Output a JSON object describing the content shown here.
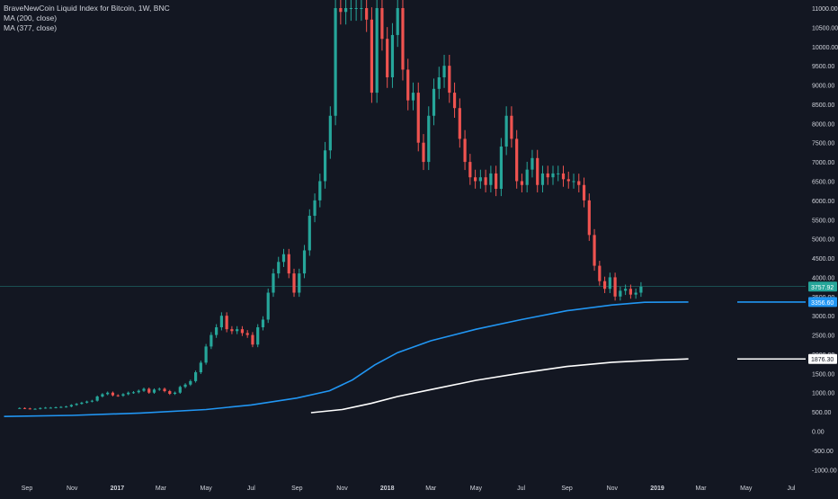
{
  "legend": {
    "title": "BraveNewCoin Liquid Index for Bitcoin, 1W, BNC",
    "ma1": "MA (200, close)",
    "ma2": "MA (377, close)"
  },
  "colors": {
    "background": "#131722",
    "up": "#26a69a",
    "down": "#ef5350",
    "ma200": "#2196f3",
    "ma377": "#ffffff",
    "axis_text": "#d1d4dc",
    "price_line": "#26a69a"
  },
  "chart_data": {
    "type": "candlestick",
    "title": "BraveNewCoin Liquid Index for Bitcoin, 1W, BNC",
    "timeframe": "1W",
    "y_axis": {
      "position": "right",
      "range": [
        -1100,
        11150
      ],
      "ticks": [
        11000,
        10500,
        10000,
        9500,
        9000,
        8500,
        8000,
        7500,
        7000,
        6500,
        6000,
        5500,
        5000,
        4500,
        4000,
        3500,
        3000,
        2500,
        2000,
        1500,
        1000,
        500,
        0,
        -500,
        -1000
      ],
      "tick_labels": [
        "11000.00",
        "10500.00",
        "10000.00",
        "9500.00",
        "9000.00",
        "8500.00",
        "8000.00",
        "7500.00",
        "7000.00",
        "6500.00",
        "6000.00",
        "5500.00",
        "5000.00",
        "4500.00",
        "4000.00",
        "3500.00",
        "3000.00",
        "2500.00",
        "2000.00",
        "1500.00",
        "1000.00",
        "500.00",
        "0.00",
        "-500.00",
        "-1000.00"
      ]
    },
    "x_axis": {
      "ticks": [
        {
          "label": "Sep",
          "date": "2016-09-01",
          "bold": false
        },
        {
          "label": "Nov",
          "date": "2016-11-01",
          "bold": false
        },
        {
          "label": "2017",
          "date": "2017-01-01",
          "bold": true
        },
        {
          "label": "Mar",
          "date": "2017-03-01",
          "bold": false
        },
        {
          "label": "May",
          "date": "2017-05-01",
          "bold": false
        },
        {
          "label": "Jul",
          "date": "2017-07-01",
          "bold": false
        },
        {
          "label": "Sep",
          "date": "2017-09-01",
          "bold": false
        },
        {
          "label": "Nov",
          "date": "2017-11-01",
          "bold": false
        },
        {
          "label": "2018",
          "date": "2018-01-01",
          "bold": true
        },
        {
          "label": "Mar",
          "date": "2018-03-01",
          "bold": false
        },
        {
          "label": "May",
          "date": "2018-05-01",
          "bold": false
        },
        {
          "label": "Jul",
          "date": "2018-07-01",
          "bold": false
        },
        {
          "label": "Sep",
          "date": "2018-09-01",
          "bold": false
        },
        {
          "label": "Nov",
          "date": "2018-11-01",
          "bold": false
        },
        {
          "label": "2019",
          "date": "2019-01-01",
          "bold": true
        },
        {
          "label": "Mar",
          "date": "2019-03-01",
          "bold": false
        },
        {
          "label": "May",
          "date": "2019-05-01",
          "bold": false
        },
        {
          "label": "Jul",
          "date": "2019-07-01",
          "bold": false
        }
      ]
    },
    "weekly_close": [
      600,
      590,
      580,
      580,
      600,
      610,
      610,
      620,
      630,
      640,
      680,
      710,
      740,
      770,
      790,
      900,
      960,
      1000,
      930,
      920,
      960,
      1000,
      1010,
      1050,
      1100,
      1000,
      1080,
      1100,
      1040,
      970,
      1000,
      1150,
      1210,
      1300,
      1530,
      1780,
      2200,
      2500,
      2700,
      3000,
      2650,
      2600,
      2650,
      2550,
      2500,
      2250,
      2700,
      2900,
      3600,
      4100,
      4400,
      4600,
      4100,
      3600,
      4100,
      4700,
      5600,
      6000,
      6500,
      7300,
      8200,
      11000,
      10900,
      11000,
      11000,
      11000,
      11000,
      10700,
      8800,
      11000,
      10200,
      9200,
      10300,
      11000,
      9400,
      8600,
      8800,
      7500,
      7000,
      8200,
      8900,
      9200,
      9500,
      8800,
      8400,
      7600,
      7000,
      6600,
      6500,
      6600,
      6400,
      6700,
      6300,
      7400,
      8200,
      7600,
      6500,
      6400,
      6800,
      7100,
      6400,
      6700,
      6600,
      6700,
      6700,
      6550,
      6500,
      6500,
      6400,
      6000,
      5100,
      4300,
      3900,
      3700,
      4000,
      3500,
      3650,
      3700,
      3550,
      3600,
      3760
    ],
    "ma200": {
      "name": "MA (200, close)",
      "last_value": 3356.6,
      "last_label": "3356.60",
      "points": [
        [
          "2016-08-01",
          380
        ],
        [
          "2016-11-01",
          410
        ],
        [
          "2017-02-01",
          470
        ],
        [
          "2017-05-01",
          560
        ],
        [
          "2017-07-01",
          680
        ],
        [
          "2017-09-01",
          860
        ],
        [
          "2017-10-15",
          1050
        ],
        [
          "2017-11-15",
          1330
        ],
        [
          "2017-12-15",
          1720
        ],
        [
          "2018-01-15",
          2040
        ],
        [
          "2018-03-01",
          2350
        ],
        [
          "2018-05-01",
          2650
        ],
        [
          "2018-07-01",
          2900
        ],
        [
          "2018-09-01",
          3130
        ],
        [
          "2018-11-01",
          3280
        ],
        [
          "2018-12-15",
          3350
        ],
        [
          "2019-02-12",
          3356.6
        ]
      ]
    },
    "ma377": {
      "name": "MA (377, close)",
      "last_value": 1876.3,
      "last_label": "1876.30",
      "points": [
        [
          "2017-09-20",
          480
        ],
        [
          "2017-11-01",
          560
        ],
        [
          "2017-12-10",
          720
        ],
        [
          "2018-01-15",
          900
        ],
        [
          "2018-03-01",
          1080
        ],
        [
          "2018-05-01",
          1320
        ],
        [
          "2018-07-01",
          1510
        ],
        [
          "2018-09-01",
          1680
        ],
        [
          "2018-11-01",
          1790
        ],
        [
          "2019-01-01",
          1850
        ],
        [
          "2019-02-12",
          1876.3
        ]
      ]
    },
    "last_price": 3757.92,
    "last_price_label": "3757.92",
    "grid": false,
    "legend_position": "top-left"
  }
}
